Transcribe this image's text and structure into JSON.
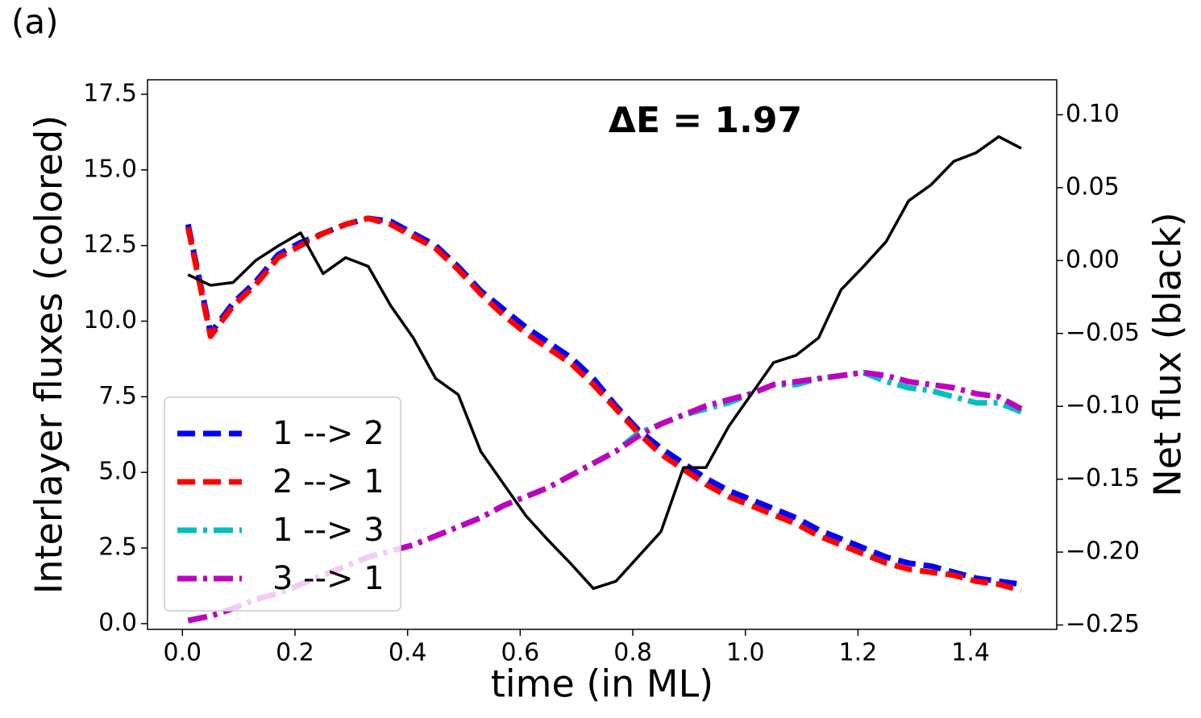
{
  "chart_data": {
    "type": "line",
    "panel_label": "(a)",
    "annotation": "ΔE = 1.97",
    "xlabel": "time (in ML)",
    "ylabel": "Interlayer fluxes (colored)",
    "y2label": "Net flux (black)",
    "xlim": [
      -0.062,
      1.553
    ],
    "ylim": [
      -0.19,
      17.98
    ],
    "y2lim": [
      -0.253,
      0.124
    ],
    "xticks": [
      {
        "value": 0,
        "label": "0.0"
      },
      0.2,
      0.4,
      0.6,
      0.8,
      {
        "value": 1,
        "label": "1.0"
      },
      1.2,
      1.4
    ],
    "yticks": [
      {
        "value": 0,
        "label": "0.0"
      },
      2.5,
      {
        "value": 5,
        "label": "5.0"
      },
      7.5,
      {
        "value": 10,
        "label": "10.0"
      },
      12.5,
      {
        "value": 15,
        "label": "15.0"
      },
      17.5
    ],
    "y2ticks": [
      {
        "value": -0.25,
        "label": "−0.25"
      },
      {
        "value": -0.2,
        "label": "−0.20"
      },
      {
        "value": -0.15,
        "label": "−0.15"
      },
      {
        "value": -0.1,
        "label": "−0.10"
      },
      {
        "value": -0.05,
        "label": "−0.05"
      },
      {
        "value": 0,
        "label": "0.00"
      },
      {
        "value": 0.05,
        "label": "0.05"
      },
      {
        "value": 0.1,
        "label": "0.10"
      }
    ],
    "legend_loc": "lower left",
    "x": [
      0.01,
      0.05,
      0.09,
      0.13,
      0.17,
      0.21,
      0.25,
      0.29,
      0.33,
      0.37,
      0.41,
      0.45,
      0.49,
      0.53,
      0.57,
      0.61,
      0.65,
      0.69,
      0.73,
      0.77,
      0.81,
      0.85,
      0.89,
      0.93,
      0.97,
      1.01,
      1.05,
      1.09,
      1.13,
      1.17,
      1.21,
      1.25,
      1.29,
      1.33,
      1.37,
      1.41,
      1.45,
      1.49
    ],
    "series": [
      {
        "name": "1 --> 2",
        "color": "#0000ff",
        "linestyle": "dashed",
        "values": [
          13.2,
          9.6,
          10.6,
          11.3,
          12.2,
          12.6,
          12.9,
          13.2,
          13.4,
          13.3,
          12.9,
          12.5,
          11.8,
          11.0,
          10.4,
          9.8,
          9.3,
          8.8,
          8.1,
          7.2,
          6.4,
          5.8,
          5.3,
          4.8,
          4.4,
          4.1,
          3.8,
          3.5,
          3.1,
          2.8,
          2.5,
          2.2,
          2.0,
          1.9,
          1.7,
          1.5,
          1.4,
          1.3
        ]
      },
      {
        "name": "2 --> 1",
        "color": "#ff0000",
        "linestyle": "dashed",
        "values": [
          13.1,
          9.5,
          10.5,
          11.2,
          12.1,
          12.5,
          12.9,
          13.2,
          13.4,
          13.2,
          12.8,
          12.4,
          11.7,
          10.9,
          10.2,
          9.6,
          9.1,
          8.6,
          7.9,
          7.1,
          6.3,
          5.6,
          5.1,
          4.6,
          4.2,
          3.9,
          3.6,
          3.3,
          2.9,
          2.6,
          2.3,
          2.0,
          1.8,
          1.7,
          1.6,
          1.4,
          1.3,
          1.1
        ]
      },
      {
        "name": "1 --> 3",
        "color": "#00bfbf",
        "linestyle": "dashdot",
        "values": [
          0.1,
          0.25,
          0.5,
          0.8,
          1.0,
          1.3,
          1.6,
          1.9,
          2.2,
          2.4,
          2.6,
          2.9,
          3.2,
          3.5,
          3.9,
          4.2,
          4.5,
          4.9,
          5.3,
          5.7,
          6.3,
          6.6,
          6.9,
          7.1,
          7.3,
          7.6,
          7.9,
          7.9,
          8.1,
          8.2,
          8.3,
          8.0,
          7.8,
          7.7,
          7.5,
          7.3,
          7.3,
          7.0
        ]
      },
      {
        "name": "3 --> 1",
        "color": "#bf00bf",
        "linestyle": "dashdot",
        "values": [
          0.1,
          0.25,
          0.5,
          0.8,
          1.0,
          1.3,
          1.6,
          1.9,
          2.2,
          2.4,
          2.6,
          2.9,
          3.2,
          3.5,
          3.9,
          4.2,
          4.5,
          4.9,
          5.3,
          5.7,
          6.2,
          6.6,
          6.9,
          7.2,
          7.4,
          7.6,
          7.9,
          8.0,
          8.1,
          8.2,
          8.3,
          8.2,
          8.0,
          7.9,
          7.8,
          7.6,
          7.5,
          7.1
        ]
      },
      {
        "name": "Net flux",
        "color": "#000000",
        "linestyle": "solid",
        "axis": "y2",
        "in_legend": false,
        "values": [
          -0.0097,
          -0.017,
          -0.015,
          0.0,
          0.01,
          0.019,
          -0.009,
          0.002,
          -0.004,
          -0.031,
          -0.053,
          -0.081,
          -0.092,
          -0.131,
          -0.153,
          -0.175,
          -0.192,
          -0.208,
          -0.225,
          -0.22,
          -0.203,
          -0.186,
          -0.142,
          -0.142,
          -0.114,
          -0.092,
          -0.07,
          -0.065,
          -0.053,
          -0.02,
          -0.004,
          0.013,
          0.041,
          0.052,
          0.068,
          0.074,
          0.085,
          0.077
        ]
      }
    ]
  }
}
